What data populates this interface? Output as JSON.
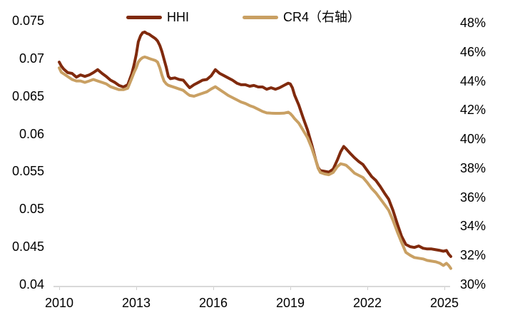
{
  "chart_data": {
    "type": "line",
    "title": "",
    "legend": {
      "position": "top"
    },
    "x_axis": {
      "ticks": [
        2010,
        2013,
        2016,
        2019,
        2022,
        2025
      ]
    },
    "left_axis": {
      "ticks": [
        "0.075",
        "0.07",
        "0.065",
        "0.06",
        "0.055",
        "0.05",
        "0.045",
        "0.04"
      ],
      "range": [
        0.04,
        0.075
      ],
      "grid": false
    },
    "right_axis": {
      "ticks": [
        "48%",
        "46%",
        "44%",
        "42%",
        "40%",
        "38%",
        "36%",
        "34%",
        "32%",
        "30%"
      ],
      "range": [
        30,
        48
      ]
    },
    "x": [
      2010.0,
      2010.08,
      2010.17,
      2010.33,
      2010.5,
      2010.67,
      2010.83,
      2011.0,
      2011.17,
      2011.33,
      2011.5,
      2011.67,
      2011.83,
      2012.0,
      2012.17,
      2012.33,
      2012.5,
      2012.67,
      2012.83,
      2012.92,
      2013.0,
      2013.08,
      2013.17,
      2013.25,
      2013.33,
      2013.42,
      2013.5,
      2013.58,
      2013.67,
      2013.75,
      2013.83,
      2013.92,
      2014.0,
      2014.08,
      2014.17,
      2014.25,
      2014.33,
      2014.5,
      2014.67,
      2014.83,
      2015.0,
      2015.08,
      2015.25,
      2015.42,
      2015.58,
      2015.75,
      2015.92,
      2016.08,
      2016.25,
      2016.42,
      2016.58,
      2016.75,
      2016.92,
      2017.08,
      2017.25,
      2017.42,
      2017.58,
      2017.75,
      2017.92,
      2018.08,
      2018.25,
      2018.42,
      2018.58,
      2018.75,
      2018.92,
      2019.0,
      2019.08,
      2019.17,
      2019.33,
      2019.5,
      2019.67,
      2019.83,
      2020.0,
      2020.08,
      2020.17,
      2020.33,
      2020.5,
      2020.67,
      2020.83,
      2020.96,
      2021.08,
      2021.17,
      2021.33,
      2021.5,
      2021.67,
      2021.83,
      2022.0,
      2022.17,
      2022.33,
      2022.5,
      2022.67,
      2022.83,
      2023.0,
      2023.17,
      2023.33,
      2023.5,
      2023.67,
      2023.83,
      2024.0,
      2024.17,
      2024.33,
      2024.5,
      2024.67,
      2024.83,
      2024.96,
      2025.08,
      2025.17,
      2025.25
    ],
    "series": [
      {
        "name": "HHI",
        "axis": "left",
        "color": "#802A0D",
        "values": [
          0.0695,
          0.069,
          0.0686,
          0.0681,
          0.068,
          0.0675,
          0.0678,
          0.0676,
          0.0678,
          0.0681,
          0.0685,
          0.068,
          0.0676,
          0.0671,
          0.0668,
          0.0664,
          0.0662,
          0.0665,
          0.068,
          0.0692,
          0.0705,
          0.0722,
          0.073,
          0.0734,
          0.0735,
          0.0733,
          0.0732,
          0.073,
          0.0728,
          0.0726,
          0.0723,
          0.0717,
          0.0709,
          0.0699,
          0.0688,
          0.0676,
          0.0673,
          0.0674,
          0.0672,
          0.0671,
          0.0664,
          0.0661,
          0.0665,
          0.0668,
          0.0671,
          0.0672,
          0.0677,
          0.0685,
          0.068,
          0.0677,
          0.0674,
          0.0671,
          0.0667,
          0.0665,
          0.0665,
          0.0663,
          0.0664,
          0.0662,
          0.0662,
          0.0659,
          0.0661,
          0.0659,
          0.0661,
          0.0664,
          0.0667,
          0.0666,
          0.0661,
          0.0651,
          0.0638,
          0.0621,
          0.0605,
          0.0586,
          0.0564,
          0.0555,
          0.0551,
          0.055,
          0.0549,
          0.0553,
          0.0565,
          0.0576,
          0.0583,
          0.058,
          0.0574,
          0.0568,
          0.0563,
          0.0559,
          0.0551,
          0.0543,
          0.0538,
          0.053,
          0.0521,
          0.0513,
          0.0498,
          0.048,
          0.0464,
          0.0453,
          0.045,
          0.0449,
          0.0451,
          0.0448,
          0.0447,
          0.0447,
          0.0446,
          0.0445,
          0.0444,
          0.0445,
          0.044,
          0.0437
        ]
      },
      {
        "name": "CR4（右轴）",
        "axis": "right",
        "color": "#C9A063",
        "values": [
          44.9,
          44.6,
          44.5,
          44.3,
          44.1,
          44.0,
          44.0,
          43.9,
          44.0,
          44.1,
          44.0,
          43.9,
          43.8,
          43.6,
          43.5,
          43.4,
          43.4,
          43.5,
          44.2,
          44.6,
          44.9,
          45.3,
          45.5,
          45.6,
          45.65,
          45.6,
          45.55,
          45.5,
          45.45,
          45.4,
          45.3,
          44.9,
          44.4,
          44.0,
          43.8,
          43.7,
          43.65,
          43.55,
          43.45,
          43.35,
          43.1,
          43.0,
          42.95,
          43.05,
          43.15,
          43.25,
          43.45,
          43.6,
          43.4,
          43.2,
          43.0,
          42.85,
          42.7,
          42.55,
          42.45,
          42.3,
          42.2,
          42.05,
          41.9,
          41.8,
          41.78,
          41.77,
          41.77,
          41.78,
          41.85,
          41.75,
          41.6,
          41.4,
          41.1,
          40.6,
          40.1,
          39.4,
          38.5,
          38.0,
          37.7,
          37.6,
          37.55,
          37.7,
          38.1,
          38.3,
          38.25,
          38.2,
          37.95,
          37.65,
          37.5,
          37.35,
          37.0,
          36.6,
          36.3,
          35.9,
          35.5,
          35.1,
          34.4,
          33.6,
          32.9,
          32.2,
          32.0,
          31.85,
          31.8,
          31.75,
          31.65,
          31.6,
          31.55,
          31.45,
          31.3,
          31.45,
          31.3,
          31.1
        ]
      }
    ]
  },
  "colors": {
    "axis_line": "#D9D9D9",
    "text": "#000000",
    "background": "#FFFFFF"
  }
}
